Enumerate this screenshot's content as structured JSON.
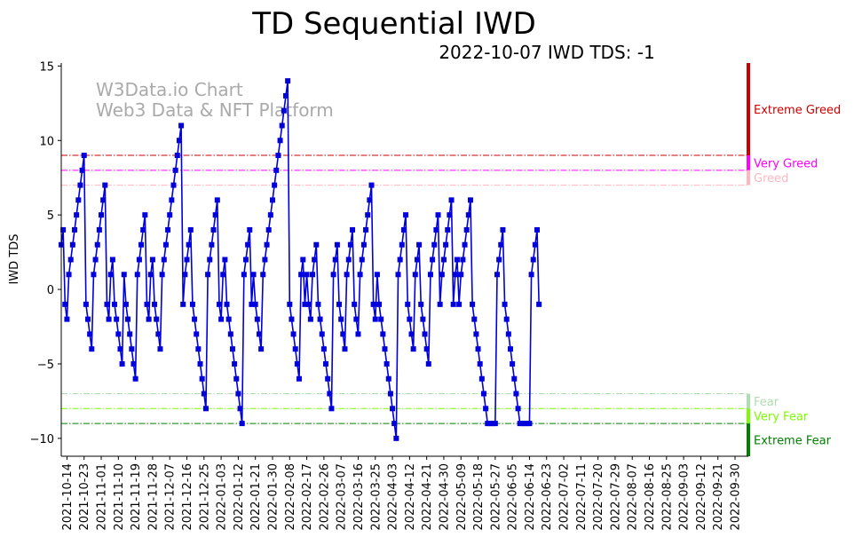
{
  "chart_data": {
    "type": "line",
    "title": "TD Sequential IWD",
    "subtitle": "2022-10-07 IWD TDS: -1",
    "ylabel": "IWD TDS",
    "xlabel": "",
    "watermark": [
      "W3Data.io Chart",
      "Web3 Data & NFT Platform"
    ],
    "ylim": [
      -11.2,
      15.2
    ],
    "y_ticks": [
      -10,
      -5,
      0,
      5,
      10,
      15
    ],
    "x_range": [
      "2021-10-11",
      "2022-10-07"
    ],
    "x_ticks": [
      "2021-10-14",
      "2021-10-23",
      "2021-11-01",
      "2021-11-10",
      "2021-11-19",
      "2021-11-28",
      "2021-12-07",
      "2021-12-16",
      "2021-12-25",
      "2022-01-03",
      "2022-01-12",
      "2022-01-21",
      "2022-01-30",
      "2022-02-08",
      "2022-02-17",
      "2022-02-26",
      "2022-03-07",
      "2022-03-16",
      "2022-03-25",
      "2022-04-03",
      "2022-04-12",
      "2022-04-21",
      "2022-04-30",
      "2022-05-09",
      "2022-05-18",
      "2022-05-27",
      "2022-06-05",
      "2022-06-14",
      "2022-06-23",
      "2022-07-02",
      "2022-07-11",
      "2022-07-20",
      "2022-07-29",
      "2022-08-07",
      "2022-08-16",
      "2022-08-25",
      "2022-09-03",
      "2022-09-12",
      "2022-09-21",
      "2022-09-30"
    ],
    "series": [
      {
        "name": "",
        "color": "#0000dd",
        "start_date": "2021-10-11",
        "values": [
          3,
          4,
          -1,
          -2,
          1,
          2,
          3,
          4,
          5,
          6,
          7,
          8,
          9,
          -1,
          -2,
          -3,
          -4,
          1,
          2,
          3,
          4,
          5,
          6,
          7,
          -1,
          -2,
          1,
          2,
          -1,
          -2,
          -3,
          -4,
          -5,
          1,
          -1,
          -2,
          -3,
          -4,
          -5,
          -6,
          1,
          2,
          3,
          4,
          5,
          -1,
          -2,
          1,
          2,
          -1,
          -2,
          -3,
          -4,
          1,
          2,
          3,
          4,
          5,
          6,
          7,
          8,
          9,
          10,
          11,
          -1,
          1,
          2,
          3,
          4,
          -1,
          -2,
          -3,
          -4,
          -5,
          -6,
          -7,
          -8,
          1,
          2,
          3,
          4,
          5,
          6,
          -1,
          -2,
          1,
          2,
          -1,
          -2,
          -3,
          -4,
          -5,
          -6,
          -7,
          -8,
          -9,
          1,
          2,
          3,
          4,
          -1,
          1,
          -1,
          -2,
          -3,
          -4,
          1,
          2,
          3,
          4,
          5,
          6,
          7,
          8,
          9,
          10,
          11,
          12,
          13,
          14,
          -1,
          -2,
          -3,
          -4,
          -5,
          -6,
          1,
          2,
          -1,
          1,
          -1,
          -2,
          1,
          2,
          3,
          -1,
          -2,
          -3,
          -4,
          -5,
          -6,
          -7,
          -8,
          1,
          2,
          3,
          -1,
          -2,
          -3,
          -4,
          1,
          2,
          3,
          4,
          -1,
          -2,
          -3,
          1,
          2,
          3,
          4,
          5,
          6,
          7,
          -1,
          -2,
          1,
          -1,
          -2,
          -3,
          -4,
          -5,
          -6,
          -7,
          -8,
          -9,
          -10,
          1,
          2,
          3,
          4,
          5,
          -1,
          -2,
          -3,
          -4,
          1,
          2,
          3,
          -1,
          -2,
          -3,
          -4,
          -5,
          1,
          2,
          3,
          4,
          5,
          -1,
          1,
          2,
          3,
          4,
          5,
          6,
          -1,
          1,
          2,
          -1,
          1,
          2,
          3,
          4,
          5,
          6,
          -1,
          -2,
          -3,
          -4,
          -5,
          -6,
          -7,
          -8,
          -9,
          -9,
          -9,
          -9,
          -9,
          1,
          2,
          3,
          4,
          -1,
          -2,
          -3,
          -4,
          -5,
          -6,
          -7,
          -8,
          -9,
          -9,
          -9,
          -9,
          -9,
          -9,
          1,
          2,
          3,
          4,
          -1
        ]
      }
    ],
    "thresholds": [
      {
        "label": "Extreme Greed",
        "value": 9,
        "color": "#cc0000",
        "band": [
          9,
          15.2
        ]
      },
      {
        "label": "Very Greed",
        "value": 8,
        "color": "#ff00ff",
        "band": [
          8,
          9
        ]
      },
      {
        "label": "Greed",
        "value": 7,
        "color": "#ffb6c1",
        "band": [
          7,
          8
        ]
      },
      {
        "label": "Fear",
        "value": -7,
        "color": "#b0ddb0",
        "band": [
          -8,
          -7
        ]
      },
      {
        "label": "Very Fear",
        "value": -8,
        "color": "#7cfc00",
        "band": [
          -9,
          -8
        ]
      },
      {
        "label": "Extreme Fear",
        "value": -9,
        "color": "#008000",
        "band": [
          -11.2,
          -9
        ]
      }
    ],
    "grid": false,
    "legend": "none"
  }
}
